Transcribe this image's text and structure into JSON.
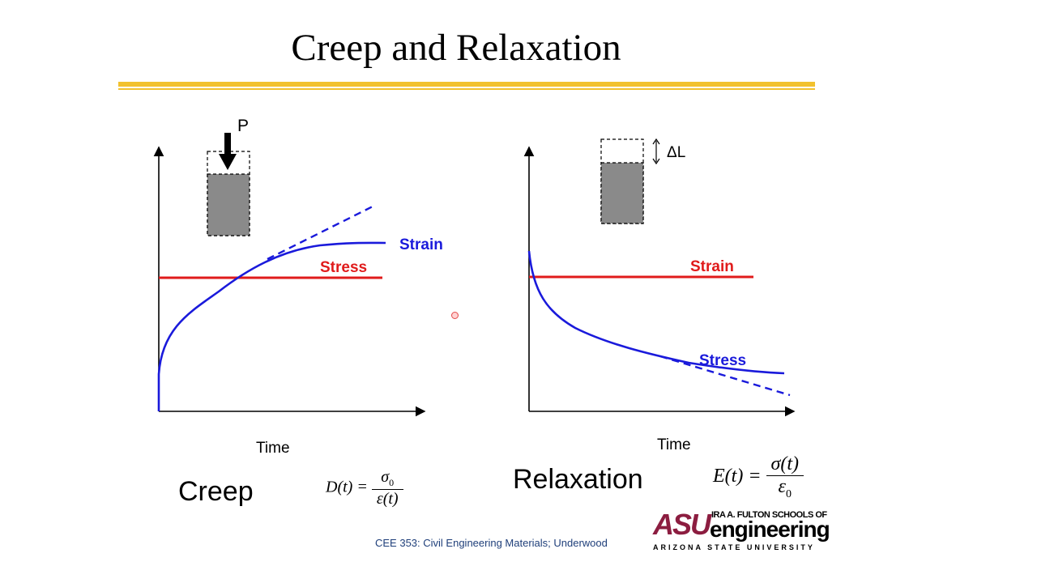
{
  "slide": {
    "title": "Creep and Relaxation",
    "footer": "CEE 353: Civil Engineering Materials; Underwood"
  },
  "creep": {
    "caption": "Creep",
    "time_label": "Time",
    "load_label": "P",
    "strain_label": "Strain",
    "stress_label": "Stress",
    "equation": {
      "lhs": "D(t) =",
      "numerator": "σ",
      "numerator_sub": "0",
      "denominator": "ε(t)"
    }
  },
  "relaxation": {
    "caption": "Relaxation",
    "time_label": "Time",
    "delta_label": "ΔL",
    "strain_label": "Strain",
    "stress_label": "Stress",
    "equation": {
      "lhs": "E(t) =",
      "numerator": "σ(t)",
      "denominator": "ε",
      "denominator_sub": "0"
    }
  },
  "logo": {
    "mark": "ASU",
    "school": "IRA A. FULTON SCHOOLS OF",
    "name": "engineering",
    "university": "ARIZONA STATE UNIVERSITY"
  },
  "colors": {
    "accent_rule": "#f2c12e",
    "strain_creep": "#1a1adb",
    "stress_creep": "#e01b1b",
    "asu_maroon": "#8c1d40",
    "footer_text": "#1f3f7a"
  }
}
